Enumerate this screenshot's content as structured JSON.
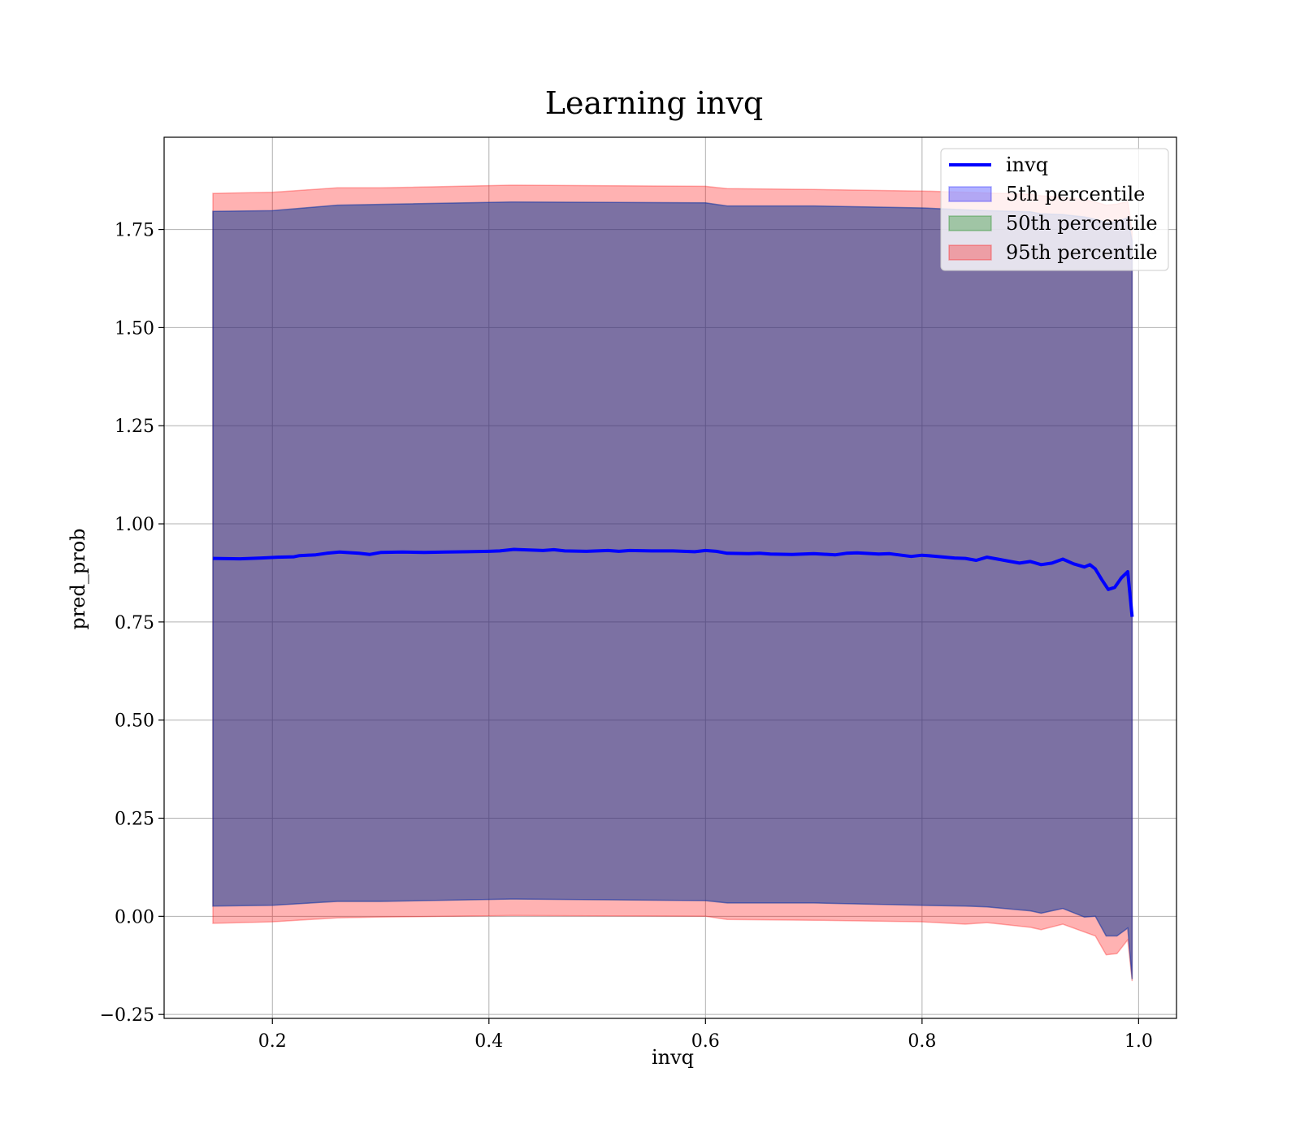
{
  "chart_data": {
    "type": "area",
    "title": "Learning invq",
    "xlabel": "invq",
    "ylabel": "pred_prob",
    "xlim": [
      0.1,
      1.035
    ],
    "ylim": [
      -0.26,
      1.985
    ],
    "xticks": [
      0.2,
      0.4,
      0.6,
      0.8,
      1.0
    ],
    "xtick_labels": [
      "0.2",
      "0.4",
      "0.6",
      "0.8",
      "1.0"
    ],
    "yticks": [
      -0.25,
      0.0,
      0.25,
      0.5,
      0.75,
      1.0,
      1.25,
      1.5,
      1.75
    ],
    "ytick_labels": [
      "−0.25",
      "0.00",
      "0.25",
      "0.50",
      "0.75",
      "1.00",
      "1.25",
      "1.50",
      "1.75"
    ],
    "grid": true,
    "legend_position": "top-right",
    "legend": [
      {
        "label": "invq",
        "kind": "line",
        "color": "#0000ff"
      },
      {
        "label": "5th percentile",
        "kind": "patch",
        "color": "#0000ff"
      },
      {
        "label": "50th percentile",
        "kind": "patch",
        "color": "#008000"
      },
      {
        "label": "95th percentile",
        "kind": "patch",
        "color": "#ff0000"
      }
    ],
    "series": [
      {
        "name": "invq",
        "kind": "line",
        "color": "#0000ff",
        "x": [
          0.145,
          0.17,
          0.19,
          0.205,
          0.22,
          0.225,
          0.24,
          0.25,
          0.262,
          0.28,
          0.29,
          0.3,
          0.32,
          0.34,
          0.36,
          0.38,
          0.4,
          0.41,
          0.423,
          0.44,
          0.45,
          0.46,
          0.47,
          0.49,
          0.51,
          0.52,
          0.53,
          0.55,
          0.57,
          0.58,
          0.59,
          0.6,
          0.61,
          0.62,
          0.64,
          0.65,
          0.66,
          0.68,
          0.7,
          0.72,
          0.73,
          0.74,
          0.76,
          0.77,
          0.79,
          0.8,
          0.81,
          0.83,
          0.84,
          0.85,
          0.86,
          0.87,
          0.88,
          0.89,
          0.9,
          0.91,
          0.92,
          0.93,
          0.94,
          0.95,
          0.955,
          0.96,
          0.966,
          0.972,
          0.978,
          0.984,
          0.99,
          0.994
        ],
        "y": [
          0.912,
          0.911,
          0.913,
          0.915,
          0.916,
          0.919,
          0.921,
          0.925,
          0.928,
          0.925,
          0.922,
          0.927,
          0.928,
          0.927,
          0.928,
          0.929,
          0.93,
          0.931,
          0.935,
          0.933,
          0.932,
          0.934,
          0.931,
          0.93,
          0.932,
          0.93,
          0.932,
          0.931,
          0.931,
          0.93,
          0.929,
          0.932,
          0.93,
          0.925,
          0.924,
          0.925,
          0.923,
          0.922,
          0.924,
          0.921,
          0.925,
          0.926,
          0.923,
          0.924,
          0.917,
          0.92,
          0.918,
          0.913,
          0.912,
          0.907,
          0.915,
          0.91,
          0.905,
          0.9,
          0.904,
          0.896,
          0.9,
          0.91,
          0.898,
          0.89,
          0.896,
          0.885,
          0.858,
          0.833,
          0.838,
          0.862,
          0.878,
          0.763
        ]
      },
      {
        "name": "5th percentile",
        "kind": "band",
        "color": "#0000ff",
        "x": [
          0.145,
          0.2,
          0.26,
          0.3,
          0.42,
          0.6,
          0.62,
          0.7,
          0.8,
          0.84,
          0.86,
          0.9,
          0.91,
          0.93,
          0.95,
          0.96,
          0.97,
          0.98,
          0.99,
          0.994
        ],
        "lower": [
          0.026,
          0.028,
          0.038,
          0.038,
          0.044,
          0.04,
          0.034,
          0.034,
          0.028,
          0.026,
          0.024,
          0.014,
          0.008,
          0.02,
          -0.002,
          0.0,
          -0.05,
          -0.05,
          -0.03,
          -0.16
        ],
        "upper": [
          1.796,
          1.798,
          1.812,
          1.814,
          1.82,
          1.818,
          1.81,
          1.81,
          1.805,
          1.8,
          1.798,
          1.795,
          1.79,
          1.788,
          1.782,
          1.776,
          1.768,
          1.77,
          1.78,
          1.72
        ]
      },
      {
        "name": "50th percentile",
        "kind": "band",
        "color": "#008000",
        "x": [
          0.145,
          0.2,
          0.26,
          0.3,
          0.42,
          0.6,
          0.62,
          0.7,
          0.8,
          0.84,
          0.86,
          0.9,
          0.91,
          0.93,
          0.95,
          0.96,
          0.97,
          0.98,
          0.99,
          0.994
        ],
        "lower": [
          0.026,
          0.028,
          0.038,
          0.038,
          0.044,
          0.04,
          0.034,
          0.034,
          0.028,
          0.026,
          0.024,
          0.014,
          0.008,
          0.02,
          -0.002,
          0.0,
          -0.05,
          -0.05,
          -0.03,
          -0.16
        ],
        "upper": [
          1.796,
          1.798,
          1.812,
          1.814,
          1.82,
          1.818,
          1.81,
          1.81,
          1.805,
          1.8,
          1.798,
          1.795,
          1.79,
          1.788,
          1.782,
          1.776,
          1.768,
          1.77,
          1.78,
          1.72
        ]
      },
      {
        "name": "95th percentile",
        "kind": "band",
        "color": "#ff0000",
        "x": [
          0.145,
          0.2,
          0.26,
          0.3,
          0.42,
          0.6,
          0.62,
          0.7,
          0.8,
          0.84,
          0.86,
          0.9,
          0.91,
          0.93,
          0.95,
          0.96,
          0.97,
          0.98,
          0.99,
          0.994
        ],
        "lower": [
          -0.018,
          -0.014,
          -0.004,
          -0.002,
          0.002,
          0.0,
          -0.008,
          -0.01,
          -0.014,
          -0.02,
          -0.016,
          -0.028,
          -0.034,
          -0.02,
          -0.04,
          -0.05,
          -0.098,
          -0.095,
          -0.06,
          -0.165
        ],
        "upper": [
          1.842,
          1.845,
          1.856,
          1.856,
          1.863,
          1.86,
          1.854,
          1.852,
          1.848,
          1.845,
          1.843,
          1.84,
          1.836,
          1.832,
          1.826,
          1.82,
          1.812,
          1.815,
          1.822,
          1.745
        ]
      }
    ]
  }
}
